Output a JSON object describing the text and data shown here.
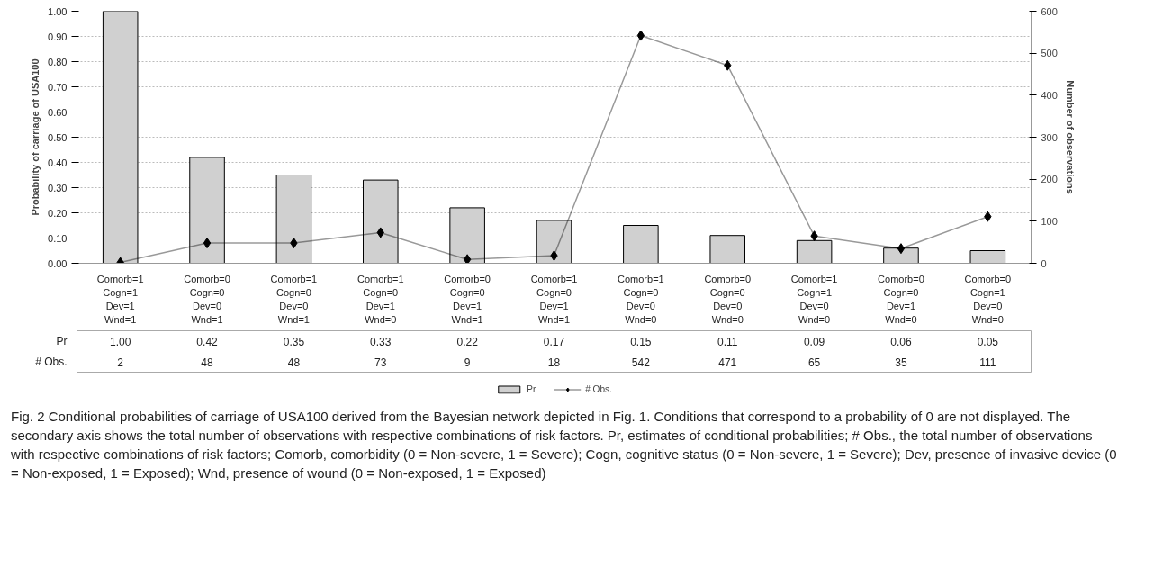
{
  "chart_data": {
    "type": "bar",
    "ylabel": "Probability of carriage of USA100",
    "y2label": "Number of observations",
    "categories": [
      "Comorb=1\nCogn=1\nDev=1\nWnd=1",
      "Comorb=0\nCogn=0\nDev=0\nWnd=1",
      "Comorb=1\nCogn=0\nDev=0\nWnd=1",
      "Comorb=1\nCogn=0\nDev=1\nWnd=0",
      "Comorb=0\nCogn=0\nDev=1\nWnd=1",
      "Comorb=1\nCogn=0\nDev=1\nWnd=1",
      "Comorb=1\nCogn=0\nDev=0\nWnd=0",
      "Comorb=0\nCogn=0\nDev=0\nWnd=0",
      "Comorb=1\nCogn=1\nDev=0\nWnd=0",
      "Comorb=0\nCogn=0\nDev=1\nWnd=0",
      "Comorb=0\nCogn=1\nDev=0\nWnd=0"
    ],
    "series": [
      {
        "name": "Pr",
        "color": "#d0d0d0",
        "values": [
          1.0,
          0.42,
          0.35,
          0.33,
          0.22,
          0.17,
          0.15,
          0.11,
          0.09,
          0.06,
          0.05
        ],
        "value_labels": [
          "1.00",
          "0.42",
          "0.35",
          "0.33",
          "0.22",
          "0.17",
          "0.15",
          "0.11",
          "0.09",
          "0.06",
          "0.05"
        ]
      },
      {
        "name": "# Obs.",
        "type": "line",
        "axis": "y2",
        "color": "#000000",
        "marker": "diamond",
        "values": [
          2,
          48,
          48,
          73,
          9,
          18,
          542,
          471,
          65,
          35,
          111
        ],
        "value_labels": [
          "2",
          "48",
          "48",
          "73",
          "9",
          "18",
          "542",
          "471",
          "65",
          "35",
          "111"
        ]
      }
    ],
    "ylim": [
      0,
      1
    ],
    "yticks": [
      {
        "value": 0,
        "label": "0.00"
      },
      {
        "value": 0.1,
        "label": "0.10"
      },
      {
        "value": 0.2,
        "label": "0.20"
      },
      {
        "value": 0.3,
        "label": "0.30"
      },
      {
        "value": 0.4,
        "label": "0.40"
      },
      {
        "value": 0.5,
        "label": "0.50"
      },
      {
        "value": 0.6,
        "label": "0.60"
      },
      {
        "value": 0.7,
        "label": "0.70"
      },
      {
        "value": 0.8,
        "label": "0.80"
      },
      {
        "value": 0.9,
        "label": "0.90"
      },
      {
        "value": 1,
        "label": "1.00"
      }
    ],
    "y2lim": [
      0,
      600
    ],
    "y2ticks": [
      0,
      100,
      200,
      300,
      400,
      500,
      600
    ],
    "grid": "y",
    "legend": "bottom",
    "annotations": [
      "Fig. 2 Conditional probabilities of carriage of USA100 derived from the Bayesian network depicted in Fig. 1. Conditions that correspond to a probability of 0 are not displayed. The secondary axis shows the total number of observations with respective combinations of risk factors. Pr, estimates of conditional probabilities; # Obs., the total number of observations with respective combinations of risk factors; Comorb, comorbidity (0 = Non-severe, 1 = Severe); Cogn, cognitive status (0 = Non-severe, 1 = Severe); Dev, presence of invasive device (0 = Non-exposed, 1 = Exposed); Wnd, presence of wound (0 = Non-exposed, 1 = Exposed)"
    ]
  }
}
